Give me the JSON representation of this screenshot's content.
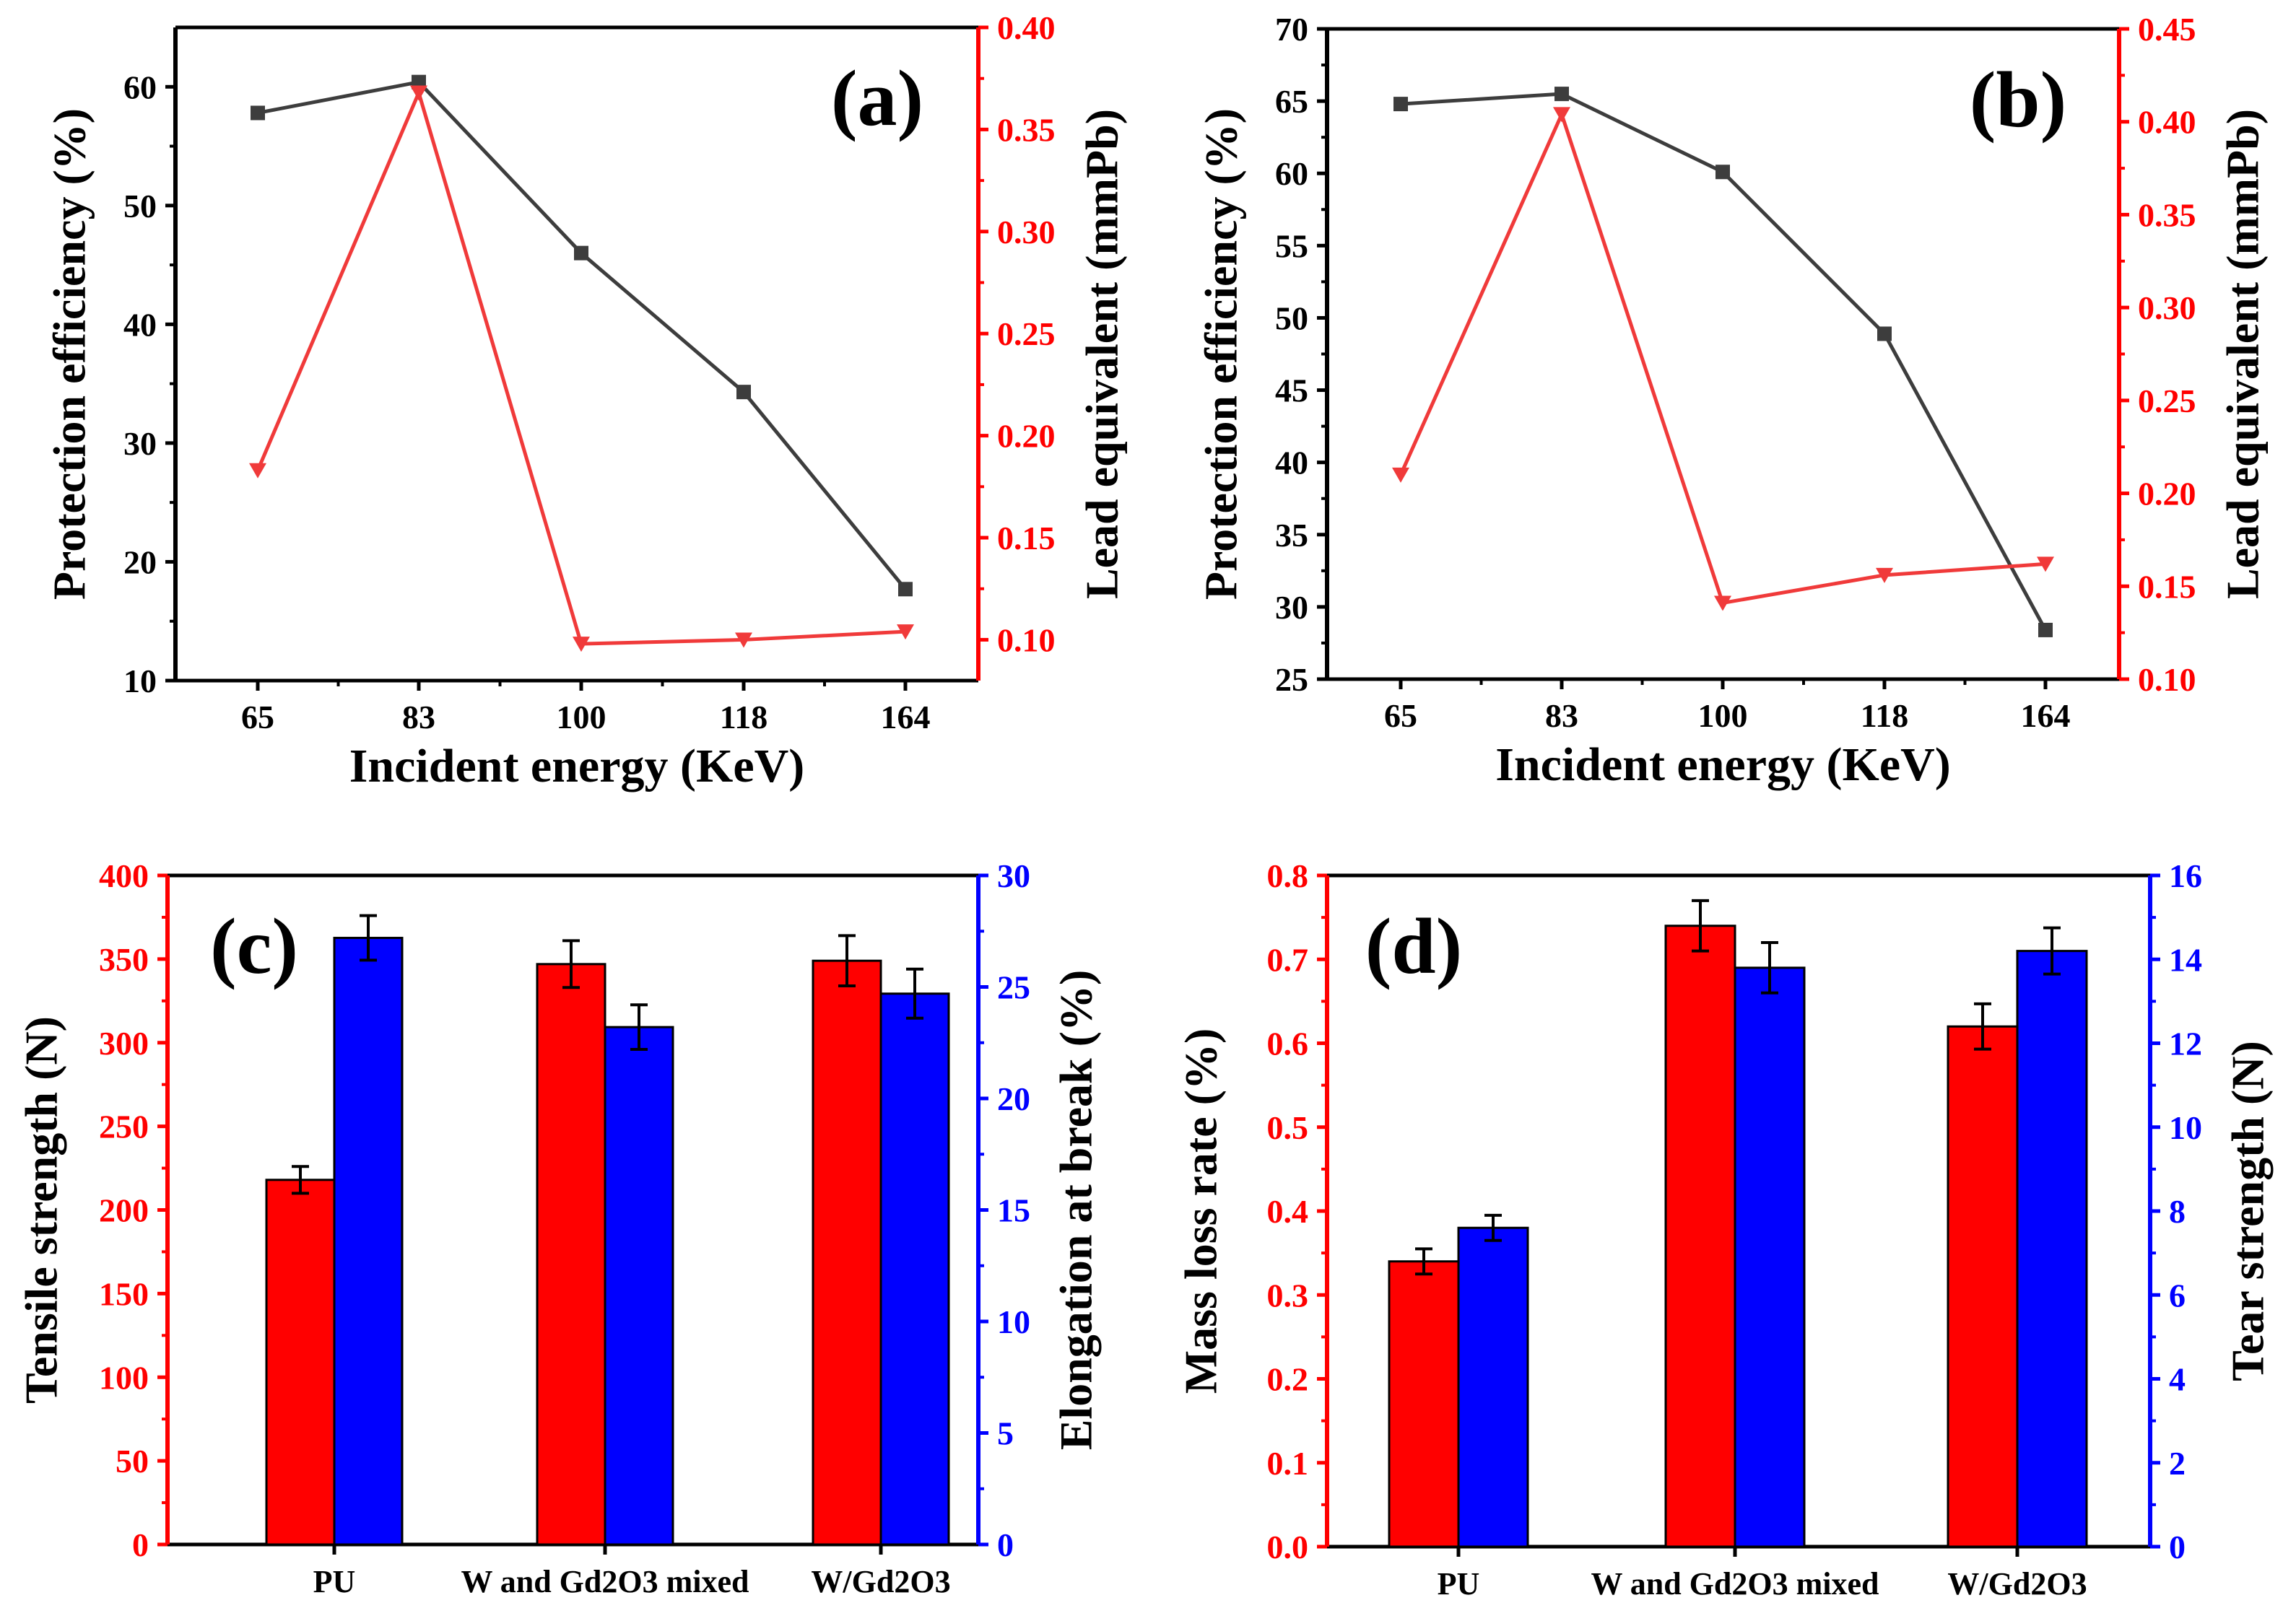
{
  "colors": {
    "black_series": "#3d3d3d",
    "red": "#ff0000",
    "red_line": "#f03a3a",
    "blue": "#0000ff",
    "axis": "#000000"
  },
  "chart_data": [
    {
      "id": "a",
      "panel_label": "(a)",
      "type": "line",
      "xlabel": "Incident energy (KeV)",
      "categories": [
        "65",
        "83",
        "100",
        "118",
        "164"
      ],
      "ylabel_left": "Protection efficiency (%)",
      "ylabel_right": "Lead equivalent (mmPb)",
      "ylim_left": [
        10,
        65
      ],
      "ylim_right": [
        0.08,
        0.4
      ],
      "yticks_left": [
        10,
        20,
        30,
        40,
        50,
        60
      ],
      "yticks_right": [
        0.1,
        0.15,
        0.2,
        0.25,
        0.3,
        0.35,
        0.4
      ],
      "right_tick_decimals": 2,
      "series": [
        {
          "name": "Protection efficiency",
          "axis": "left",
          "color": "#3d3d3d",
          "marker": "square",
          "values": [
            57.8,
            60.4,
            46.0,
            34.3,
            17.7
          ]
        },
        {
          "name": "Lead equivalent",
          "axis": "right",
          "color": "#f03a3a",
          "marker": "triangle-down",
          "values": [
            0.183,
            0.368,
            0.098,
            0.1,
            0.104
          ]
        }
      ]
    },
    {
      "id": "b",
      "panel_label": "(b)",
      "type": "line",
      "xlabel": "Incident energy (KeV)",
      "categories": [
        "65",
        "83",
        "100",
        "118",
        "164"
      ],
      "ylabel_left": "Protection efficiency (%)",
      "ylabel_right": "Lead equivalent (mmPb)",
      "ylim_left": [
        25,
        70
      ],
      "ylim_right": [
        0.1,
        0.45
      ],
      "yticks_left": [
        25,
        30,
        35,
        40,
        45,
        50,
        55,
        60,
        65,
        70
      ],
      "yticks_right": [
        0.1,
        0.15,
        0.2,
        0.25,
        0.3,
        0.35,
        0.4,
        0.45
      ],
      "right_tick_decimals": 2,
      "series": [
        {
          "name": "Protection efficiency",
          "axis": "left",
          "color": "#3d3d3d",
          "marker": "square",
          "values": [
            64.8,
            65.5,
            60.1,
            48.9,
            28.4
          ]
        },
        {
          "name": "Lead equivalent",
          "axis": "right",
          "color": "#f03a3a",
          "marker": "triangle-down",
          "values": [
            0.21,
            0.404,
            0.141,
            0.156,
            0.162
          ]
        }
      ]
    },
    {
      "id": "c",
      "panel_label": "(c)",
      "type": "bar",
      "categories": [
        "PU",
        "W and Gd2O3 mixed",
        "W/Gd2O3"
      ],
      "ylabel_left": "Tensile strength (N)",
      "ylabel_right": "Elongation at break (%)",
      "ylim_left": [
        0,
        400
      ],
      "ylim_right": [
        0,
        30
      ],
      "yticks_left": [
        0,
        50,
        100,
        150,
        200,
        250,
        300,
        350,
        400
      ],
      "yticks_right": [
        0,
        5,
        10,
        15,
        20,
        25,
        30
      ],
      "right_tick_decimals": 0,
      "series": [
        {
          "name": "Tensile strength",
          "axis": "left",
          "color": "#ff0000",
          "values": [
            218,
            347,
            349
          ],
          "errors": [
            8,
            14,
            15
          ]
        },
        {
          "name": "Elongation at break",
          "axis": "right",
          "color": "#0000ff",
          "values": [
            27.2,
            23.2,
            24.7
          ],
          "errors": [
            1.0,
            1.0,
            1.1
          ]
        }
      ]
    },
    {
      "id": "d",
      "panel_label": "(d)",
      "type": "bar",
      "categories": [
        "PU",
        "W and Gd2O3 mixed",
        "W/Gd2O3"
      ],
      "ylabel_left": "Mass loss rate (%)",
      "ylabel_right": "Tear strength (N)",
      "ylim_left": [
        0.0,
        0.8
      ],
      "ylim_right": [
        0,
        16
      ],
      "yticks_left": [
        0.0,
        0.1,
        0.2,
        0.3,
        0.4,
        0.5,
        0.6,
        0.7,
        0.8
      ],
      "yticks_right": [
        0,
        2,
        4,
        6,
        8,
        10,
        12,
        14,
        16
      ],
      "left_tick_decimals": 1,
      "right_tick_decimals": 0,
      "series": [
        {
          "name": "Mass loss rate",
          "axis": "left",
          "color": "#ff0000",
          "values": [
            0.34,
            0.74,
            0.62
          ],
          "errors": [
            0.015,
            0.03,
            0.027
          ]
        },
        {
          "name": "Tear strength",
          "axis": "right",
          "color": "#0000ff",
          "values": [
            7.6,
            13.8,
            14.2
          ],
          "errors": [
            0.3,
            0.6,
            0.55
          ]
        }
      ]
    }
  ]
}
